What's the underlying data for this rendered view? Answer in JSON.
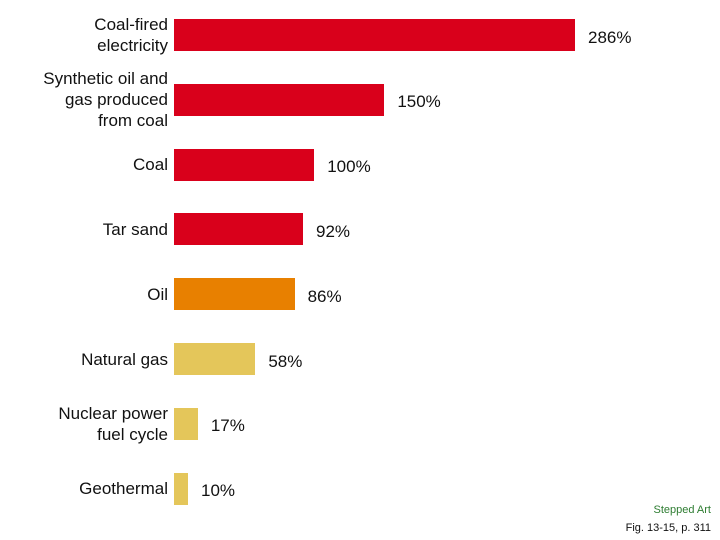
{
  "chart_data": {
    "type": "bar",
    "orientation": "horizontal",
    "categories": [
      "Coal-fired\nelectricity",
      "Synthetic oil and\ngas produced\nfrom coal",
      "Coal",
      "Tar sand",
      "Oil",
      "Natural gas",
      "Nuclear power\nfuel cycle",
      "Geothermal"
    ],
    "values": [
      286,
      150,
      100,
      92,
      86,
      58,
      17,
      10
    ],
    "value_labels": [
      "286%",
      "150%",
      "100%",
      "92%",
      "86%",
      "58%",
      "17%",
      "10%"
    ],
    "bar_colors": [
      "#d9001b",
      "#d9001b",
      "#d9001b",
      "#d9001b",
      "#e88000",
      "#e4c65a",
      "#e4c65a",
      "#e4c65a"
    ],
    "title": "",
    "xlabel": "",
    "ylabel": "",
    "xlim": [
      0,
      300
    ],
    "grid": false,
    "legend": "none"
  },
  "footer": {
    "note": "Stepped Art",
    "caption": "Fig. 13-15, p. 311"
  }
}
